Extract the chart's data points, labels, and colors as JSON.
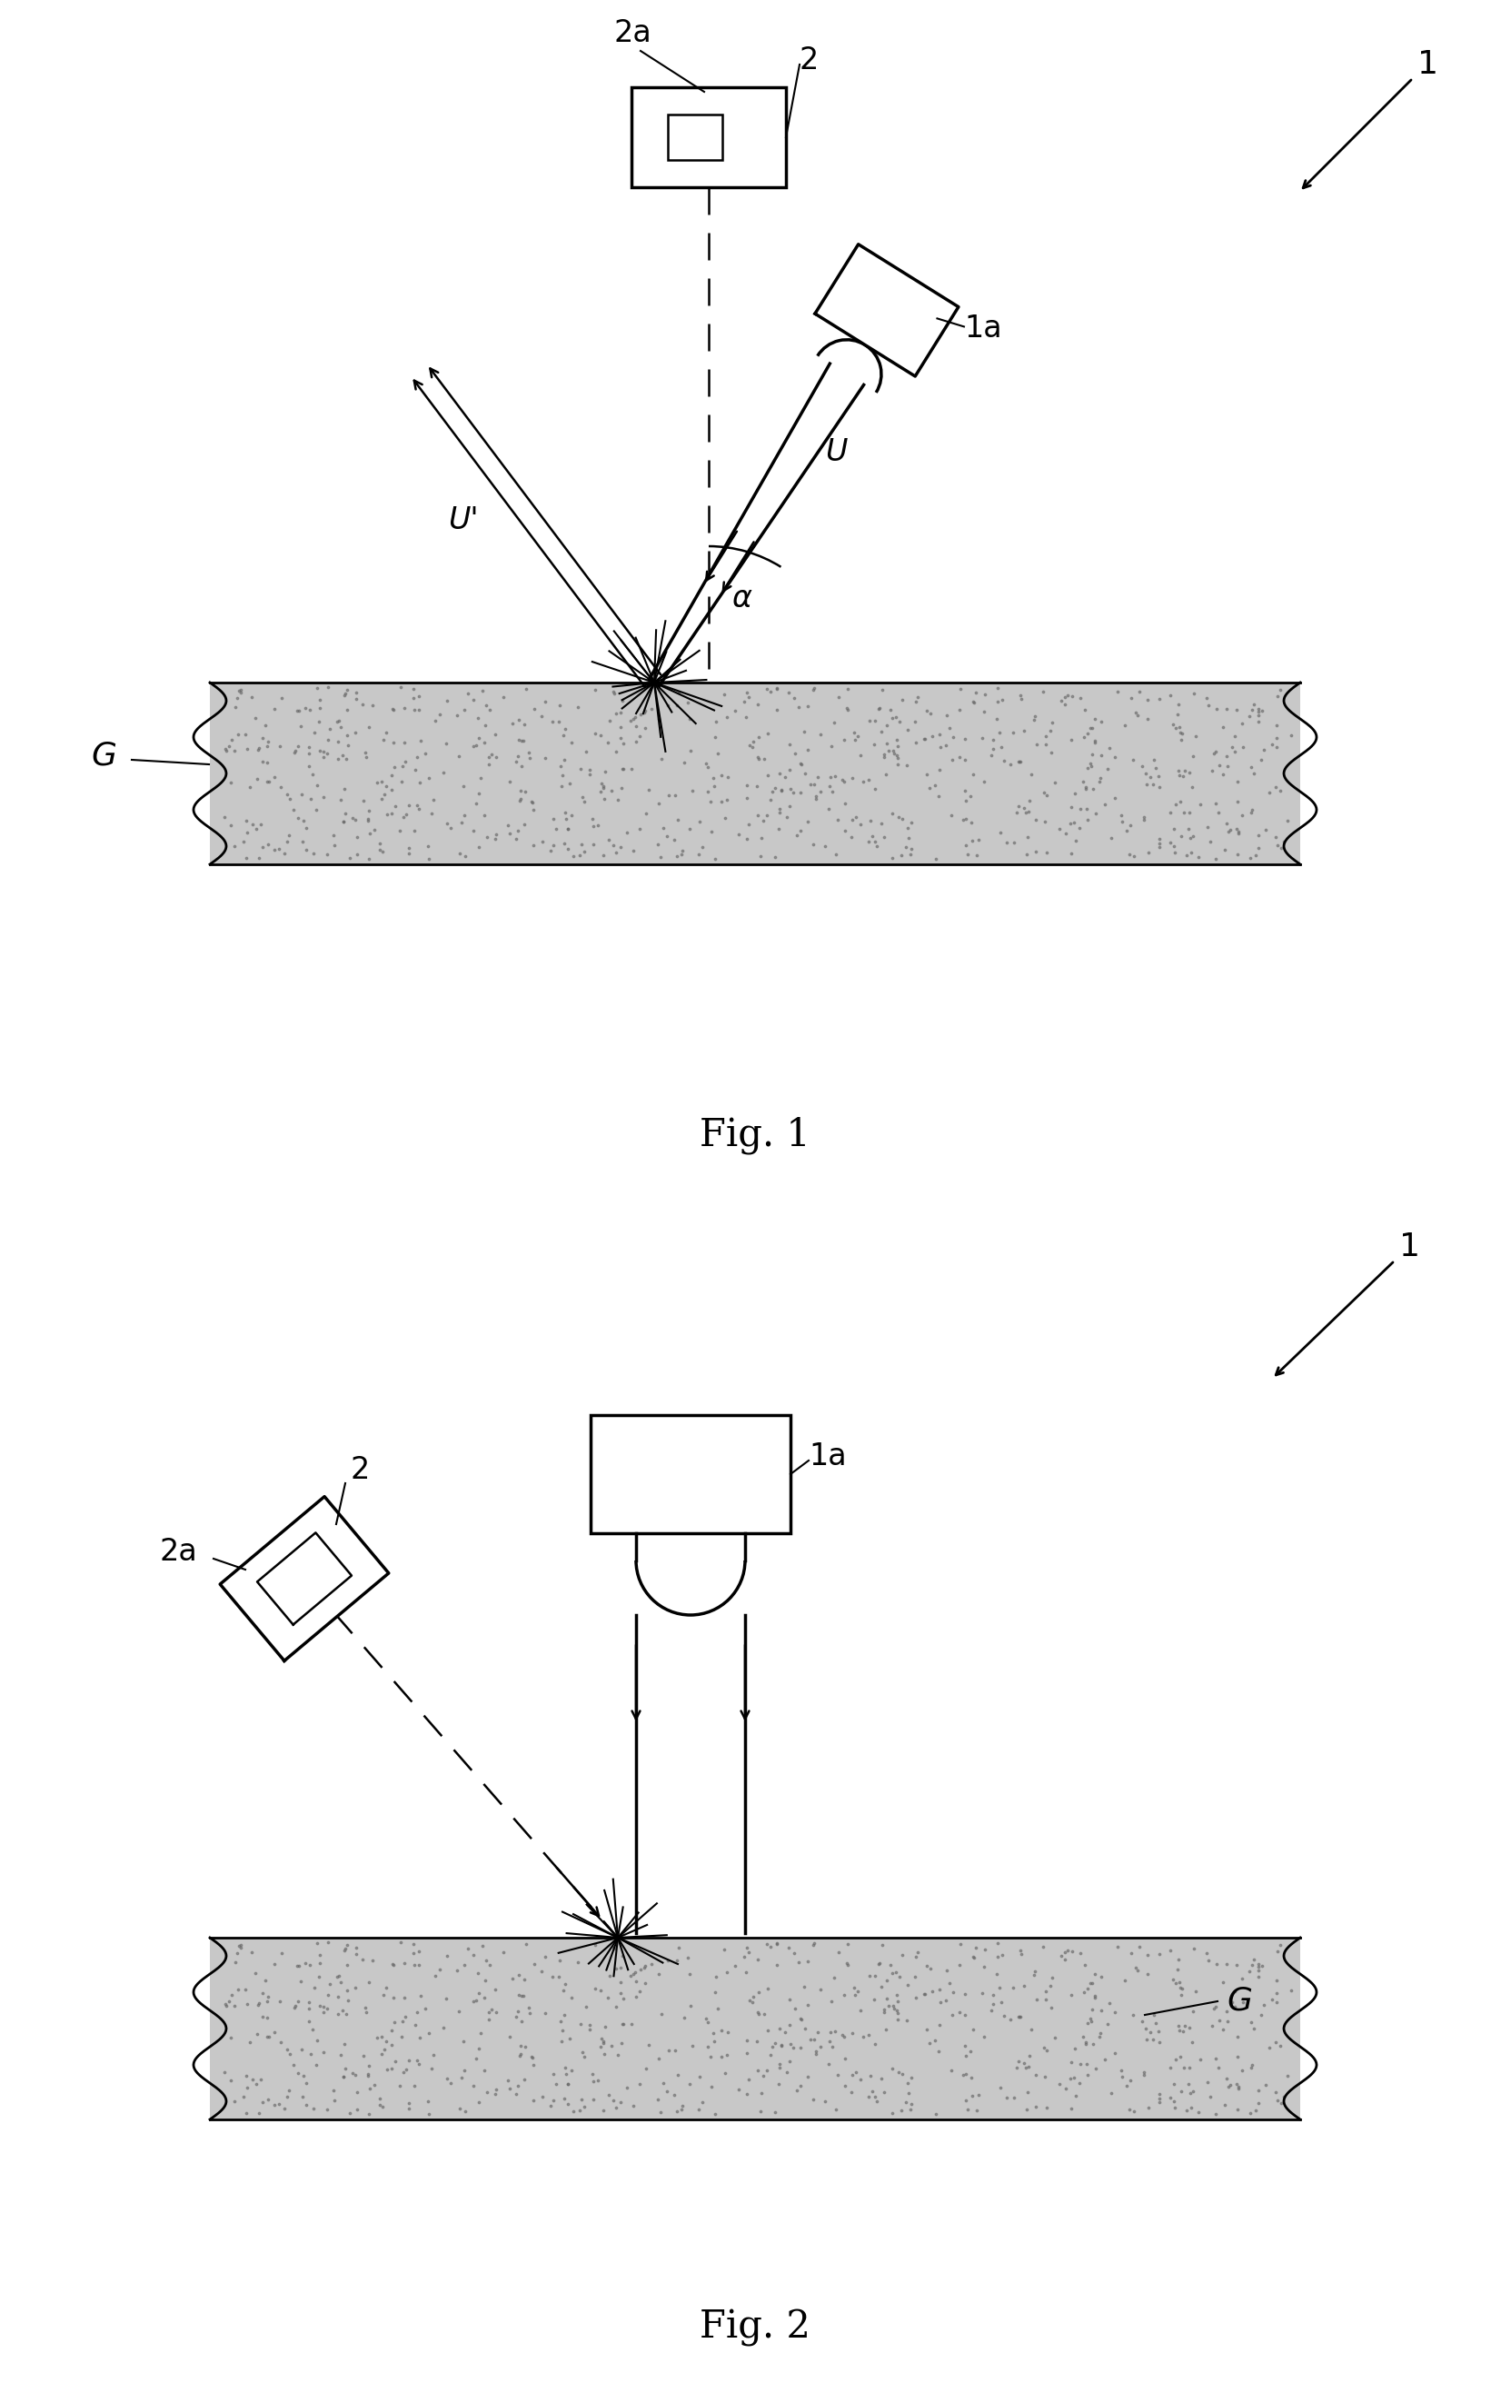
{
  "fig1_title": "Fig. 1",
  "fig2_title": "Fig. 2",
  "label_1": "1",
  "label_1a": "1a",
  "label_2": "2",
  "label_2a": "2a",
  "label_G": "G",
  "label_U": "U",
  "label_Uprime": "U'",
  "label_alpha": "α",
  "bg_color": "#ffffff",
  "surface_color": "#c8c8c8",
  "line_color": "#000000"
}
